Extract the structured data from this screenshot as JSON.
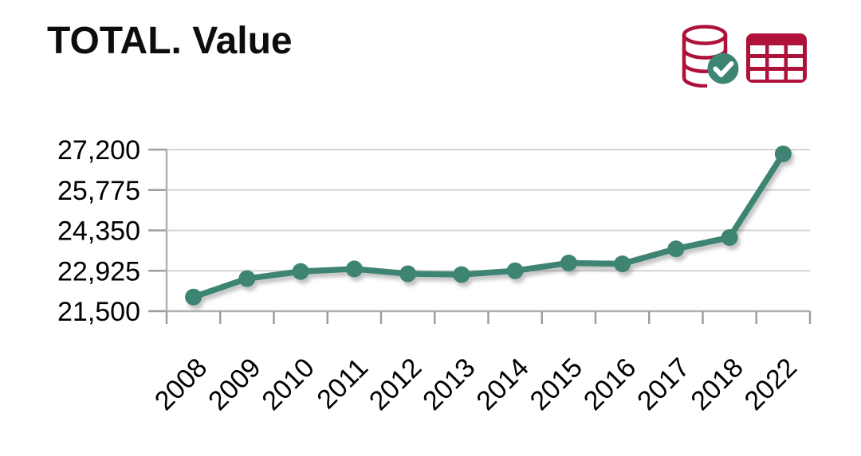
{
  "header": {
    "title": "TOTAL. Value",
    "icons": [
      {
        "name": "database-check-icon"
      },
      {
        "name": "data-table-icon"
      }
    ]
  },
  "colors": {
    "series_teal": "#3e8473",
    "icon_crimson": "#ae123a",
    "gridline": "#d4d4d4",
    "axis": "#b2b2b2",
    "tick": "#9e9e9e",
    "label_text": "#000000"
  },
  "chart_data": {
    "type": "line",
    "title": "TOTAL. Value",
    "categories": [
      "2008",
      "2009",
      "2010",
      "2011",
      "2012",
      "2013",
      "2014",
      "2015",
      "2016",
      "2017",
      "2018",
      "2022"
    ],
    "series": [
      {
        "name": "TOTAL",
        "values": [
          22000,
          22650,
          22900,
          22990,
          22820,
          22790,
          22925,
          23200,
          23170,
          23700,
          24100,
          27050
        ]
      }
    ],
    "xlabel": "",
    "ylabel": "",
    "ylim": [
      21500,
      27200
    ],
    "yticks": [
      21500,
      22925,
      24350,
      25775,
      27200
    ],
    "ytick_labels": [
      "21,500",
      "22,925",
      "24,350",
      "25,775",
      "27,200"
    ],
    "xtick_rotation": -45,
    "grid": "horizontal",
    "legend": "none",
    "line_color": "#3e8473",
    "marker": "circle"
  }
}
